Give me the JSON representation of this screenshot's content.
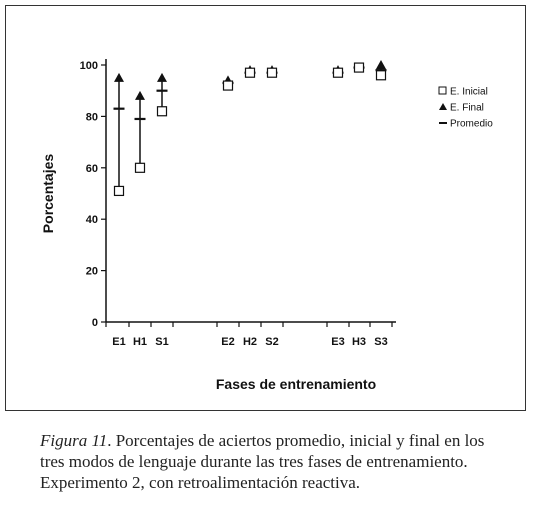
{
  "chart_data": {
    "type": "scatter",
    "title": "",
    "xlabel": "Fases de entrenamiento",
    "ylabel": "Porcentajes",
    "ylim": [
      0,
      100
    ],
    "yticks": [
      0,
      20,
      40,
      60,
      80,
      100
    ],
    "categories": [
      "E1",
      "H1",
      "S1",
      "E2",
      "H2",
      "S2",
      "E3",
      "H3",
      "S3"
    ],
    "groups": [
      [
        "E1",
        "H1",
        "S1"
      ],
      [
        "E2",
        "H2",
        "S2"
      ],
      [
        "E3",
        "H3",
        "S3"
      ]
    ],
    "series": [
      {
        "name": "E. Inicial",
        "marker": "open-square",
        "values": [
          51,
          60,
          82,
          92,
          97,
          97,
          97,
          99,
          96
        ]
      },
      {
        "name": "E. Final",
        "marker": "filled-triangle",
        "values": [
          95,
          88,
          95,
          94,
          98,
          98,
          98,
          99,
          100
        ]
      },
      {
        "name": "Promedio",
        "marker": "dash",
        "values": [
          83,
          79,
          90,
          93,
          97,
          97,
          97,
          99,
          98
        ]
      }
    ],
    "legend_position": "right",
    "grid": false
  },
  "caption": {
    "figure_label": "Figura 11",
    "text": ". Porcentajes de aciertos promedio, inicial y final en los tres modos de lenguaje durante las tres fases de entrenamiento. Experimento 2, con retroalimentación reactiva."
  }
}
